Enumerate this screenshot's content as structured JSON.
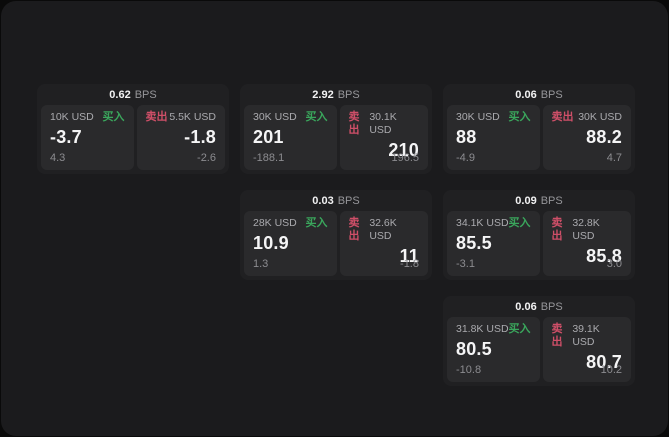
{
  "page": {
    "background": "#0a0a0a",
    "panel_background": "#1b1b1d"
  },
  "colors": {
    "card_background": "#202022",
    "tile_background": "#2a2a2c",
    "buy_green": "#3aa65c",
    "sell_red": "#cf4f68",
    "text_primary": "#f5f5f6",
    "text_secondary": "#aaaaae",
    "text_muted": "#8c8c90"
  },
  "labels": {
    "bps_unit": "BPS",
    "buy": "买入",
    "sell": "卖出"
  },
  "cards": [
    {
      "bps": "0.62",
      "buy": {
        "notional": "10K USD",
        "price": "-3.7",
        "delta": "4.3"
      },
      "sell": {
        "notional": "5.5K USD",
        "price": "-1.8",
        "delta": "-2.6"
      }
    },
    {
      "bps": "2.92",
      "buy": {
        "notional": "30K USD",
        "price": "201",
        "delta": "-188.1"
      },
      "sell": {
        "notional": "30.1K USD",
        "price": "210",
        "delta": "196.5"
      }
    },
    {
      "bps": "0.06",
      "buy": {
        "notional": "30K USD",
        "price": "88",
        "delta": "-4.9"
      },
      "sell": {
        "notional": "30K USD",
        "price": "88.2",
        "delta": "4.7"
      }
    },
    {
      "bps": "0.03",
      "buy": {
        "notional": "28K USD",
        "price": "10.9",
        "delta": "1.3"
      },
      "sell": {
        "notional": "32.6K USD",
        "price": "11",
        "delta": "-1.8"
      }
    },
    {
      "bps": "0.09",
      "buy": {
        "notional": "34.1K USD",
        "price": "85.5",
        "delta": "-3.1"
      },
      "sell": {
        "notional": "32.8K USD",
        "price": "85.8",
        "delta": "3.0"
      }
    },
    {
      "bps": "0.06",
      "buy": {
        "notional": "31.8K USD",
        "price": "80.5",
        "delta": "-10.8"
      },
      "sell": {
        "notional": "39.1K USD",
        "price": "80.7",
        "delta": "10.2"
      }
    }
  ]
}
